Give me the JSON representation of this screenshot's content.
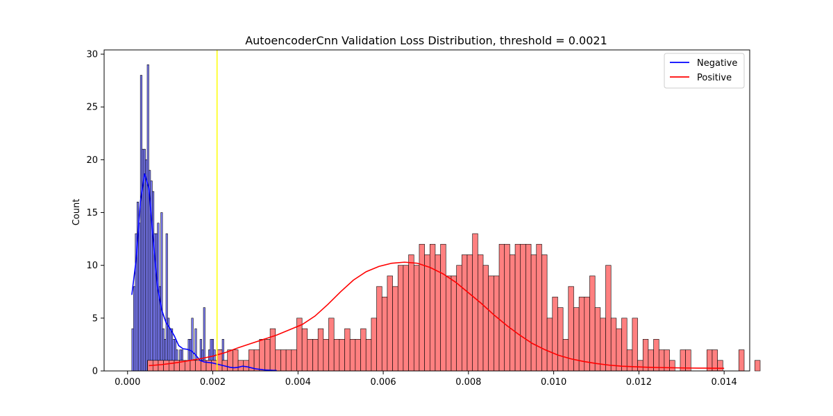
{
  "chart_data": {
    "type": "histogram",
    "title": "AutoencoderCnn Validation Loss Distribution, threshold = 0.0021",
    "xlabel": "",
    "ylabel": "Count",
    "xlim": [
      -0.00055,
      0.0146
    ],
    "ylim": [
      0,
      30.4
    ],
    "xticks": [
      0.0,
      0.002,
      0.004,
      0.006,
      0.008,
      0.01,
      0.012,
      0.014
    ],
    "xtick_labels": [
      "0.000",
      "0.002",
      "0.004",
      "0.006",
      "0.008",
      "0.010",
      "0.012",
      "0.014"
    ],
    "yticks": [
      0,
      5,
      10,
      15,
      20,
      25,
      30
    ],
    "ytick_labels": [
      "0",
      "5",
      "10",
      "15",
      "20",
      "25",
      "30"
    ],
    "threshold": 0.0021,
    "threshold_color": "#ffff00",
    "grid": false,
    "legend_position": "top-right",
    "series": [
      {
        "name": "Negative",
        "bar_color": "#8080ff",
        "line_color": "#0000ff",
        "bin_start": 0.0001,
        "bin_width": 4e-05,
        "counts": [
          4,
          8,
          13,
          16,
          14,
          28,
          21,
          21,
          20,
          29,
          19,
          18,
          17,
          13,
          13,
          14,
          8,
          15,
          4,
          3,
          13,
          5,
          4,
          4,
          3,
          3,
          2,
          1,
          2,
          2,
          1,
          0,
          0,
          3,
          3,
          5,
          1,
          4,
          1,
          1,
          3,
          2,
          6,
          1,
          1,
          2,
          3,
          3,
          2,
          1,
          1,
          2,
          2,
          3,
          1,
          0,
          1,
          0,
          1,
          1,
          0,
          0,
          0,
          0,
          0,
          0,
          0,
          0,
          1,
          1,
          0,
          0,
          0,
          0,
          1,
          0,
          0,
          0,
          0,
          0,
          0,
          0,
          0,
          0,
          1
        ],
        "kde_x": [
          0.0001,
          0.0002,
          0.0003,
          0.0004,
          0.0005,
          0.0006,
          0.0007,
          0.0008,
          0.0009,
          0.001,
          0.0011,
          0.0012,
          0.0013,
          0.0014,
          0.0015,
          0.0016,
          0.0017,
          0.0018,
          0.0019,
          0.002,
          0.0021,
          0.0022,
          0.0023,
          0.0024,
          0.0025,
          0.0026,
          0.0027,
          0.0028,
          0.0029,
          0.003,
          0.0031,
          0.0032,
          0.0033,
          0.0034,
          0.0035
        ],
        "kde_y": [
          7.2,
          10.5,
          16.0,
          18.7,
          17.3,
          12.5,
          8.0,
          5.8,
          4.6,
          4.0,
          3.3,
          2.4,
          2.1,
          2.05,
          1.9,
          1.5,
          1.0,
          0.85,
          0.8,
          0.75,
          0.65,
          0.55,
          0.45,
          0.35,
          0.3,
          0.35,
          0.45,
          0.4,
          0.3,
          0.2,
          0.15,
          0.1,
          0.08,
          0.06,
          0.05
        ]
      },
      {
        "name": "Positive",
        "bar_color": "#ff8080",
        "line_color": "#ff0000",
        "bin_start": 0.00047,
        "bin_width": 0.000125,
        "counts": [
          1,
          1,
          1,
          1,
          1,
          1,
          1,
          1,
          1,
          1,
          1,
          1,
          1,
          2,
          1,
          2,
          2,
          1,
          1,
          2,
          2,
          3,
          3,
          4,
          2,
          2,
          2,
          2,
          5,
          4,
          3,
          3,
          4,
          3,
          5,
          3,
          3,
          4,
          3,
          3,
          4,
          3,
          5,
          8,
          7,
          9,
          8,
          10,
          10,
          11,
          10,
          12,
          11,
          12,
          11,
          12,
          9,
          9,
          10,
          11,
          11,
          13,
          11,
          10,
          9,
          9,
          12,
          12,
          11,
          12,
          12,
          12,
          11,
          12,
          11,
          5,
          7,
          6,
          3,
          8,
          6,
          7,
          7,
          9,
          6,
          5,
          10,
          5,
          4,
          5,
          2,
          5,
          1,
          3,
          2,
          3,
          2,
          2,
          1,
          0,
          2,
          2,
          0,
          0,
          0,
          2,
          2,
          1,
          0,
          0,
          0,
          2,
          0,
          0,
          1
        ],
        "kde_x": [
          0.0005,
          0.0008,
          0.0011,
          0.0014,
          0.0017,
          0.002,
          0.0023,
          0.0026,
          0.0029,
          0.0032,
          0.0035,
          0.0038,
          0.0041,
          0.0044,
          0.0047,
          0.005,
          0.0053,
          0.0056,
          0.0059,
          0.0062,
          0.0065,
          0.0068,
          0.0071,
          0.0074,
          0.0077,
          0.008,
          0.0083,
          0.0086,
          0.0089,
          0.0092,
          0.0095,
          0.0098,
          0.0101,
          0.0104,
          0.0107,
          0.011,
          0.0113,
          0.0116,
          0.0119,
          0.0122,
          0.0125,
          0.0128,
          0.0131,
          0.0134,
          0.0137,
          0.014
        ],
        "kde_y": [
          0.5,
          0.6,
          0.75,
          0.95,
          1.15,
          1.4,
          1.75,
          2.2,
          2.6,
          3.0,
          3.4,
          3.9,
          4.4,
          5.2,
          6.3,
          7.5,
          8.6,
          9.4,
          9.9,
          10.2,
          10.3,
          10.2,
          9.8,
          9.2,
          8.4,
          7.4,
          6.4,
          5.3,
          4.3,
          3.4,
          2.6,
          2.0,
          1.5,
          1.15,
          0.9,
          0.7,
          0.55,
          0.45,
          0.4,
          0.35,
          0.32,
          0.3,
          0.28,
          0.27,
          0.26,
          0.25
        ]
      }
    ]
  }
}
